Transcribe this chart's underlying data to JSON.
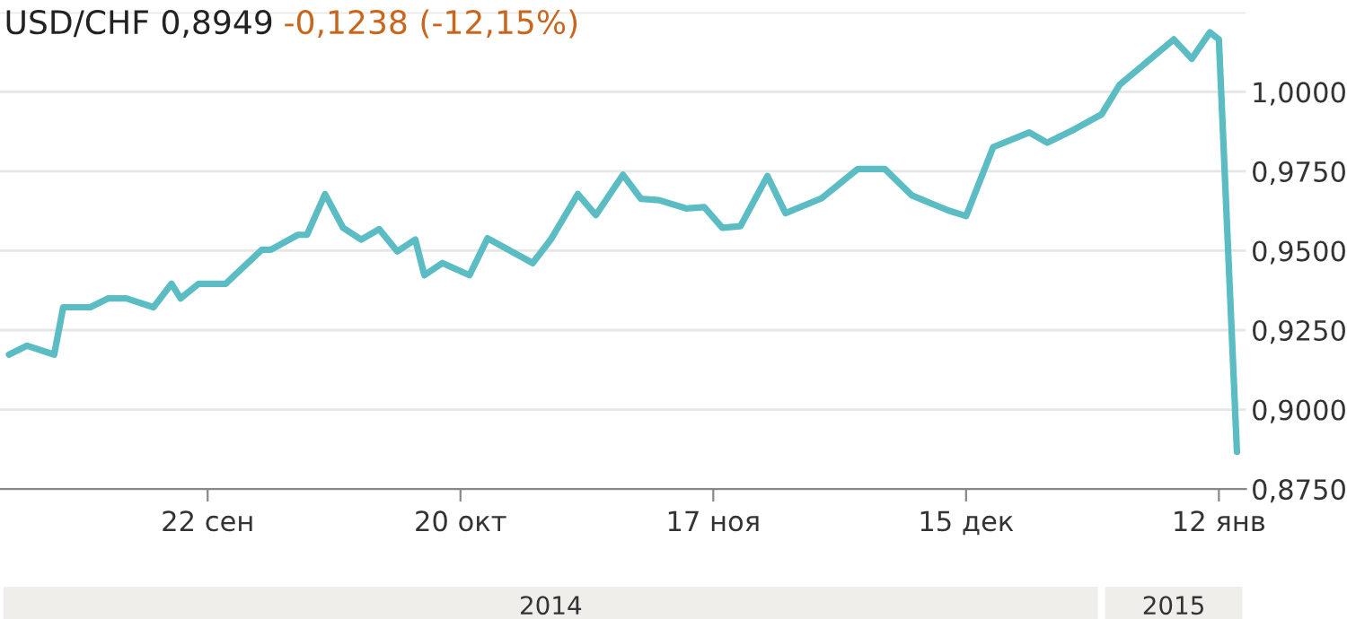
{
  "chart_data": {
    "type": "line",
    "title": "USD/CHF 0,8949",
    "subtitle": "-0,1238 (-12,15%)",
    "x": [
      "2014-08-31",
      "2014-09-02",
      "2014-09-05",
      "2014-09-06",
      "2014-09-09",
      "2014-09-11",
      "2014-09-13",
      "2014-09-16",
      "2014-09-18",
      "2014-09-19",
      "2014-09-21",
      "2014-09-24",
      "2014-09-28",
      "2014-09-29",
      "2014-10-02",
      "2014-10-03",
      "2014-10-05",
      "2014-10-07",
      "2014-10-09",
      "2014-10-11",
      "2014-10-13",
      "2014-10-15",
      "2014-10-16",
      "2014-10-18",
      "2014-10-21",
      "2014-10-23",
      "2014-10-28",
      "2014-10-30",
      "2014-11-02",
      "2014-11-04",
      "2014-11-07",
      "2014-11-09",
      "2014-11-11",
      "2014-11-14",
      "2014-11-16",
      "2014-11-18",
      "2014-11-20",
      "2014-11-23",
      "2014-11-25",
      "2014-11-29",
      "2014-12-03",
      "2014-12-06",
      "2014-12-09",
      "2014-12-13",
      "2014-12-15",
      "2014-12-18",
      "2014-12-22",
      "2014-12-24",
      "2014-12-27",
      "2014-12-30",
      "2015-01-01",
      "2015-01-07",
      "2015-01-09",
      "2015-01-11",
      "2015-01-12",
      "2015-01-14"
    ],
    "series": [
      {
        "color": "#5bbcc4",
        "values": [
          0.9173,
          0.9201,
          0.9173,
          0.9322,
          0.9322,
          0.935,
          0.935,
          0.9322,
          0.9396,
          0.935,
          0.9396,
          0.9396,
          0.9503,
          0.9503,
          0.955,
          0.955,
          0.9678,
          0.9572,
          0.9535,
          0.9568,
          0.9498,
          0.9535,
          0.9423,
          0.9461,
          0.9423,
          0.9539,
          0.9461,
          0.9535,
          0.9678,
          0.9612,
          0.9739,
          0.9663,
          0.9659,
          0.9633,
          0.9637,
          0.9572,
          0.9577,
          0.9735,
          0.9618,
          0.9665,
          0.9757,
          0.9757,
          0.9674,
          0.9627,
          0.9609,
          0.9826,
          0.9872,
          0.984,
          0.9882,
          0.9929,
          1.0022,
          1.0165,
          1.0104,
          1.0187,
          1.0165,
          0.8867
        ]
      }
    ],
    "xlim": [
      "2014-08-30",
      "2015-01-15"
    ],
    "xticks": [
      {
        "value": "2014-09-22",
        "label": "22 сен"
      },
      {
        "value": "2014-10-20",
        "label": "20 окт"
      },
      {
        "value": "2014-11-17",
        "label": "17 ноя"
      },
      {
        "value": "2014-12-15",
        "label": "15 дек"
      },
      {
        "value": "2015-01-12",
        "label": "12 янв"
      }
    ],
    "ylim": [
      0.875,
      1.025
    ],
    "yticks": [
      {
        "value": 0.875,
        "label": "0,8750"
      },
      {
        "value": 0.9,
        "label": "0,9000"
      },
      {
        "value": 0.925,
        "label": "0,9250"
      },
      {
        "value": 0.95,
        "label": "0,9500"
      },
      {
        "value": 0.975,
        "label": "0,9750"
      },
      {
        "value": 1.0,
        "label": "1,0000"
      },
      {
        "value": 1.025,
        "label": null
      }
    ],
    "x2lim": [
      "2014-08-30",
      "2015-01-15"
    ],
    "x2ticks": [
      {
        "value": "2014-10-30",
        "label": "2014"
      },
      {
        "value": "2015-01-07",
        "label": "2015"
      }
    ],
    "grid": "y",
    "legend": false
  }
}
